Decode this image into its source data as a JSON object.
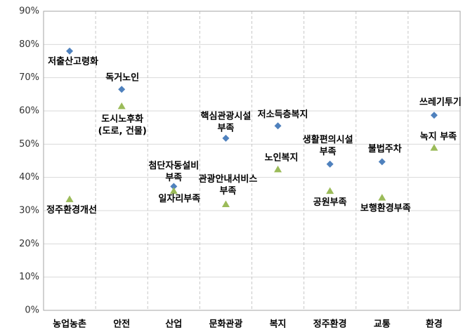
{
  "chart_data": {
    "type": "scatter",
    "categories": [
      "농업농촌",
      "안전",
      "산업",
      "문화관광",
      "복지",
      "정주환경",
      "교통",
      "환경"
    ],
    "ylim": [
      0,
      90
    ],
    "yticks": [
      {
        "value": 0,
        "label": "0%"
      },
      {
        "value": 10,
        "label": "10%"
      },
      {
        "value": 20,
        "label": "20%"
      },
      {
        "value": 30,
        "label": "30%"
      },
      {
        "value": 40,
        "label": "40%"
      },
      {
        "value": 50,
        "label": "50%"
      },
      {
        "value": 60,
        "label": "60%"
      },
      {
        "value": 70,
        "label": "70%"
      },
      {
        "value": 80,
        "label": "80%"
      },
      {
        "value": 90,
        "label": "90%"
      }
    ],
    "grid": true,
    "series": [
      {
        "color": "#4f81bd",
        "marker": "diamond",
        "values": [
          78,
          66.5,
          37.3,
          51.8,
          55.5,
          44,
          44.7,
          58.7
        ],
        "point_labels": [
          [
            "저출산고령화"
          ],
          [
            "독거노인"
          ],
          [
            "첨단자동설비",
            "부족"
          ],
          [
            "핵심관광시설",
            "부족"
          ],
          [
            "저소득층복지"
          ],
          [
            "생활편의시설",
            "부족"
          ],
          [
            "불법주차"
          ],
          [
            "쓰레기투기"
          ]
        ]
      },
      {
        "color": "#9bbb59",
        "marker": "triangle",
        "values": [
          33.5,
          61.5,
          36,
          32,
          42.5,
          36,
          34,
          49
        ],
        "point_labels": [
          [
            "정주환경개선"
          ],
          [
            "도시노후화",
            "(도로, 건물)"
          ],
          [
            "일자리부족"
          ],
          [
            "관광안내서비스",
            "부족"
          ],
          [
            "노인복지"
          ],
          [
            "공원부족"
          ],
          [
            "보행환경부족"
          ],
          [
            "녹지  부족"
          ]
        ]
      }
    ]
  }
}
